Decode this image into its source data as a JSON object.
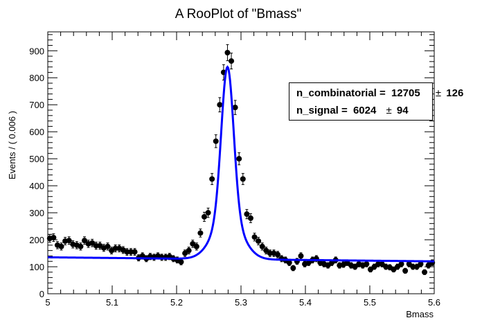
{
  "chart_data": {
    "type": "scatter",
    "title": "A RooPlot of \"Bmass\"",
    "xlabel": "Bmass",
    "ylabel": "Events / ( 0.006 )",
    "xlim": [
      5.0,
      5.6
    ],
    "ylim": [
      0,
      970
    ],
    "x_ticks": [
      5.0,
      5.1,
      5.2,
      5.3,
      5.4,
      5.5,
      5.6
    ],
    "x_tick_labels": [
      "5",
      "5.1",
      "5.2",
      "5.3",
      "5.4",
      "5.5",
      "5.6"
    ],
    "y_ticks": [
      0,
      100,
      200,
      300,
      400,
      500,
      600,
      700,
      800,
      900
    ],
    "y_tick_labels": [
      "0",
      "100",
      "200",
      "300",
      "400",
      "500",
      "600",
      "700",
      "800",
      "900"
    ],
    "series": [
      {
        "kind": "data_points_with_errors",
        "color": "#000000",
        "x": [
          5.003,
          5.009,
          5.015,
          5.021,
          5.027,
          5.033,
          5.039,
          5.045,
          5.051,
          5.057,
          5.063,
          5.069,
          5.075,
          5.081,
          5.087,
          5.093,
          5.099,
          5.105,
          5.111,
          5.117,
          5.123,
          5.129,
          5.135,
          5.141,
          5.147,
          5.153,
          5.159,
          5.165,
          5.171,
          5.177,
          5.183,
          5.189,
          5.195,
          5.201,
          5.207,
          5.213,
          5.219,
          5.225,
          5.231,
          5.237,
          5.243,
          5.249,
          5.255,
          5.261,
          5.267,
          5.273,
          5.279,
          5.285,
          5.291,
          5.297,
          5.303,
          5.309,
          5.315,
          5.321,
          5.327,
          5.333,
          5.339,
          5.345,
          5.351,
          5.357,
          5.363,
          5.369,
          5.375,
          5.381,
          5.387,
          5.393,
          5.399,
          5.405,
          5.411,
          5.417,
          5.423,
          5.429,
          5.435,
          5.441,
          5.447,
          5.453,
          5.459,
          5.465,
          5.471,
          5.477,
          5.483,
          5.489,
          5.495,
          5.501,
          5.507,
          5.513,
          5.519,
          5.525,
          5.531,
          5.537,
          5.543,
          5.549,
          5.555,
          5.561,
          5.567,
          5.573,
          5.579,
          5.585,
          5.591,
          5.597
        ],
        "y": [
          205,
          208,
          180,
          175,
          195,
          197,
          183,
          180,
          175,
          197,
          185,
          188,
          178,
          178,
          170,
          175,
          160,
          168,
          168,
          162,
          155,
          155,
          155,
          133,
          140,
          130,
          138,
          135,
          140,
          135,
          135,
          138,
          130,
          125,
          118,
          150,
          160,
          185,
          175,
          225,
          285,
          300,
          425,
          565,
          700,
          820,
          893,
          862,
          690,
          500,
          425,
          295,
          280,
          210,
          195,
          175,
          160,
          150,
          150,
          145,
          130,
          125,
          115,
          95,
          120,
          140,
          110,
          115,
          125,
          130,
          115,
          110,
          105,
          115,
          125,
          105,
          108,
          115,
          105,
          100,
          110,
          105,
          110,
          90,
          100,
          110,
          110,
          100,
          98,
          90,
          100,
          110,
          85,
          110,
          100,
          100,
          110,
          80,
          105,
          115
        ]
      },
      {
        "kind": "fit_curve",
        "color": "#0000ff",
        "peak_position": 5.279,
        "peak_value": 840,
        "background_start": 135,
        "background_end": 120
      }
    ],
    "stats_box": {
      "rows": [
        {
          "label": "n_combinatorial = ",
          "value": "12705",
          "pm": "±",
          "error": "126"
        },
        {
          "label": "n_signal = ",
          "value": "6024",
          "pm": "±",
          "error": "94"
        }
      ]
    }
  }
}
